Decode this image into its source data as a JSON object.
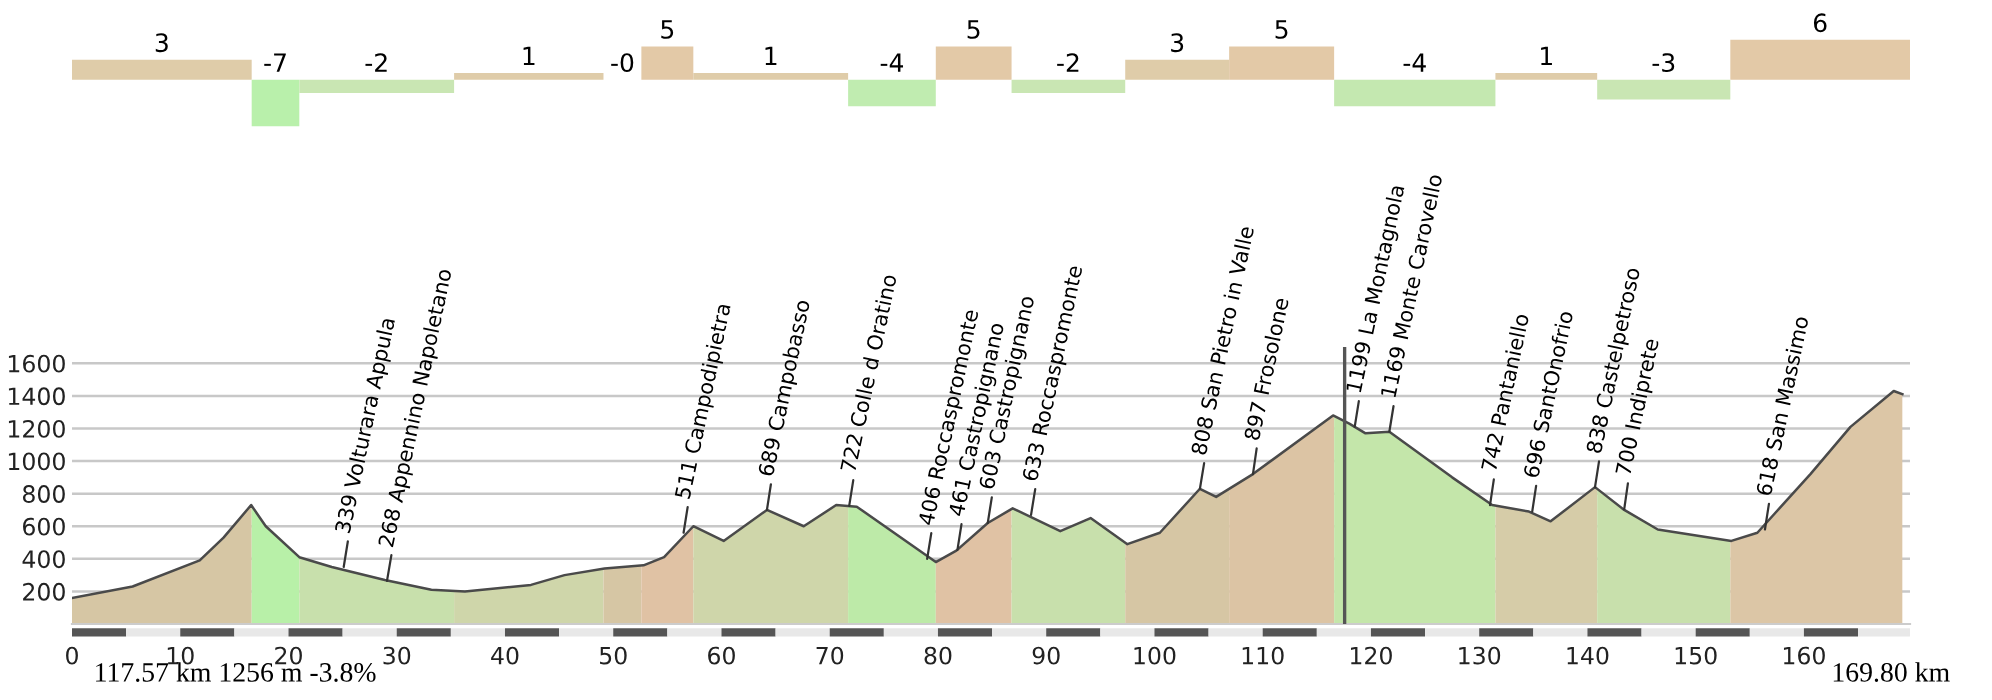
{
  "chart_data": [
    {
      "type": "bar",
      "x": [
        8.3,
        18.8,
        28.15,
        42.2,
        50.85,
        55.0,
        64.55,
        75.75,
        83.3,
        92.05,
        102.1,
        111.75,
        124.05,
        136.2,
        147.05,
        161.5
      ],
      "values": [
        3,
        -7,
        -2,
        1,
        0,
        5,
        1,
        -4,
        5,
        -2,
        3,
        5,
        -4,
        1,
        -3,
        6
      ],
      "value_labels": [
        "3",
        "-7",
        "-2",
        "1",
        "-0",
        "5",
        "1",
        "-4",
        "5",
        "-2",
        "3",
        "5",
        "-4",
        "1",
        "-3",
        "6"
      ],
      "colors": [
        "#dfcca9",
        "#b9f0ab",
        "#c9e6b3",
        "#dfcca9",
        "#dfcca9",
        "#e3c9a7",
        "#dfcca9",
        "#c0ecb0",
        "#e3c9a7",
        "#c9e6b3",
        "#dfcca9",
        "#e3c9a7",
        "#c4e8b0",
        "#dfcca9",
        "#c9e6b3",
        "#e3c9a7"
      ],
      "xlim": [
        0,
        169.8
      ],
      "tick_labels": false
    },
    {
      "type": "line",
      "series": [
        {
          "color": "#4a4a4a",
          "x": [
            0,
            5.6,
            11.8,
            14.0,
            16.55,
            17.9,
            21.0,
            24.0,
            28.9,
            33.2,
            36.3,
            42.4,
            45.5,
            49.2,
            52.8,
            54.7,
            57.4,
            60.2,
            64.2,
            67.6,
            70.6,
            72.5,
            79.8,
            81.7,
            84.6,
            86.9,
            91.3,
            94.1,
            97.5,
            100.5,
            104.2,
            105.7,
            109.1,
            116.5,
            118.0,
            119.5,
            121.7,
            127.5,
            131.2,
            134.6,
            136.6,
            140.7,
            143.4,
            146.5,
            153.3,
            155.7,
            160.6,
            164.3,
            168.3,
            169.1
          ],
          "values": [
            160,
            230,
            390,
            530,
            730,
            600,
            410,
            350,
            270,
            210,
            200,
            240,
            300,
            340,
            360,
            410,
            600,
            510,
            700,
            600,
            730,
            720,
            380,
            450,
            620,
            710,
            570,
            650,
            490,
            560,
            830,
            780,
            920,
            1280,
            1230,
            1170,
            1180,
            900,
            730,
            690,
            630,
            840,
            700,
            580,
            510,
            560,
            920,
            1210,
            1430,
            1410
          ]
        }
      ],
      "xlim": [
        0,
        169.8
      ],
      "ylim": [
        0,
        1700
      ],
      "xticks": [
        0,
        10,
        20,
        30,
        40,
        50,
        60,
        70,
        80,
        90,
        100,
        110,
        120,
        130,
        140,
        150,
        160
      ],
      "yticks": [
        200,
        400,
        600,
        800,
        1000,
        1200,
        1400,
        1600
      ],
      "grid": "y",
      "bands": [
        {
          "axis": "x",
          "from": 0,
          "to": 16.6,
          "color": "#d6c6a4"
        },
        {
          "axis": "x",
          "from": 16.6,
          "to": 21.0,
          "color": "#b8f0a8"
        },
        {
          "axis": "x",
          "from": 21.0,
          "to": 35.3,
          "color": "#c8e0ac"
        },
        {
          "axis": "x",
          "from": 35.3,
          "to": 49.1,
          "color": "#cfd6aa"
        },
        {
          "axis": "x",
          "from": 49.1,
          "to": 52.6,
          "color": "#d6c6a4"
        },
        {
          "axis": "x",
          "from": 52.6,
          "to": 57.4,
          "color": "#e0c2a4"
        },
        {
          "axis": "x",
          "from": 57.4,
          "to": 71.7,
          "color": "#cfd6aa"
        },
        {
          "axis": "x",
          "from": 71.7,
          "to": 79.8,
          "color": "#bdeaa8"
        },
        {
          "axis": "x",
          "from": 79.8,
          "to": 86.8,
          "color": "#e0c2a4"
        },
        {
          "axis": "x",
          "from": 86.8,
          "to": 97.3,
          "color": "#c8e0ac"
        },
        {
          "axis": "x",
          "from": 97.3,
          "to": 106.9,
          "color": "#d6c6a4"
        },
        {
          "axis": "x",
          "from": 106.9,
          "to": 116.6,
          "color": "#dcc4a4"
        },
        {
          "axis": "x",
          "from": 116.6,
          "to": 131.5,
          "color": "#c4e6aa"
        },
        {
          "axis": "x",
          "from": 131.5,
          "to": 140.9,
          "color": "#d6cca8"
        },
        {
          "axis": "x",
          "from": 140.9,
          "to": 153.2,
          "color": "#c8e0ac"
        },
        {
          "axis": "x",
          "from": 153.2,
          "to": 169.8,
          "color": "#dcc6a6"
        }
      ],
      "ref_lines": [
        {
          "axis": "x",
          "value": 117.57,
          "color": "#555555"
        }
      ],
      "annotations": [
        {
          "text": "339 Volturara Appula",
          "x": 25.1,
          "y": 350
        },
        {
          "text": "268 Appennino Napoletano",
          "x": 29.1,
          "y": 265
        },
        {
          "text": "511 Campodipietra",
          "x": 56.5,
          "y": 560
        },
        {
          "text": "689 Campobasso",
          "x": 64.2,
          "y": 700
        },
        {
          "text": "722 Colle d Oratino",
          "x": 71.8,
          "y": 725
        },
        {
          "text": "406 Roccaspromonte",
          "x": 79.0,
          "y": 400
        },
        {
          "text": "461 Castropignano",
          "x": 81.8,
          "y": 455
        },
        {
          "text": "603 Castropignano",
          "x": 84.6,
          "y": 620
        },
        {
          "text": "633 Roccaspromonte",
          "x": 88.6,
          "y": 670
        },
        {
          "text": "808 San Pietro in Valle",
          "x": 104.2,
          "y": 830
        },
        {
          "text": "897 Frosolone",
          "x": 109.1,
          "y": 920
        },
        {
          "text": "1199 La Montagnola",
          "x": 118.5,
          "y": 1210
        },
        {
          "text": "1169 Monte Carovello",
          "x": 121.7,
          "y": 1180
        },
        {
          "text": "742 Pantaniello",
          "x": 131.0,
          "y": 730
        },
        {
          "text": "696 SantOnofrio",
          "x": 134.9,
          "y": 690
        },
        {
          "text": "838 Castelpetroso",
          "x": 140.7,
          "y": 840
        },
        {
          "text": "700 Indiprete",
          "x": 143.4,
          "y": 705
        },
        {
          "text": "618 San Massimo",
          "x": 156.4,
          "y": 580
        },
        "117.57 km 1256 m -3.8%",
        "169.80 km"
      ]
    }
  ]
}
